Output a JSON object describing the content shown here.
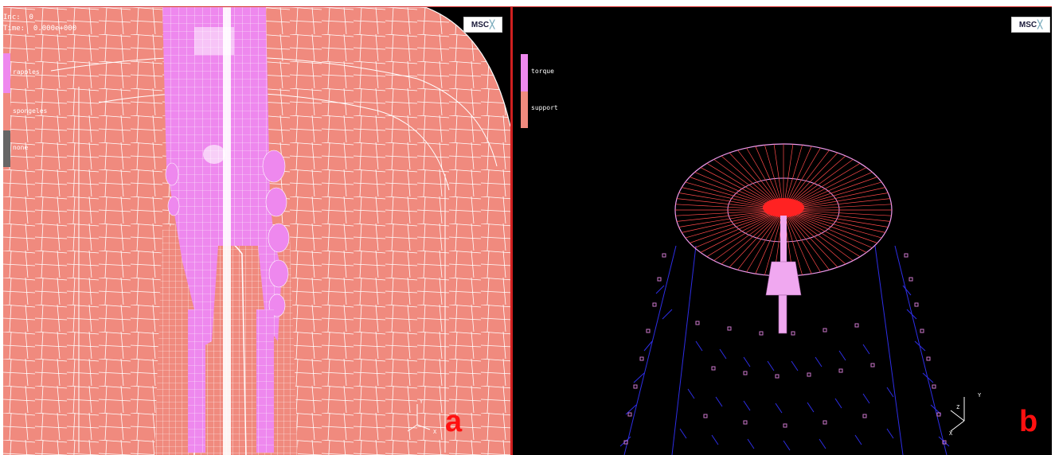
{
  "panel_a": {
    "inc_label": "Inc:  0",
    "time_label": "Time:  0.000e+000",
    "logo_text": "MSC",
    "legend": [
      {
        "label": "rapples",
        "color": "#ee88ee"
      },
      {
        "label": "spongeles",
        "color": "#f08a7e"
      },
      {
        "label": "none",
        "color": "#666666"
      }
    ],
    "letter": "a",
    "axis_labels": [
      "Y",
      "X"
    ],
    "colors": {
      "mesh": "#f08a7e",
      "implant": "#ee88ee",
      "letter": "#ff1010"
    }
  },
  "panel_b": {
    "logo_text": "MSC",
    "legend": [
      {
        "label": "torque",
        "color": "#ee88ee"
      },
      {
        "label": "support",
        "color": "#f08a7e"
      }
    ],
    "letter": "b",
    "axis_labels": [
      "Y",
      "Z",
      "X"
    ],
    "colors": {
      "arrows": "#3333ff",
      "disk": "#ff4a4a",
      "boxes": "#cc77cc"
    }
  }
}
